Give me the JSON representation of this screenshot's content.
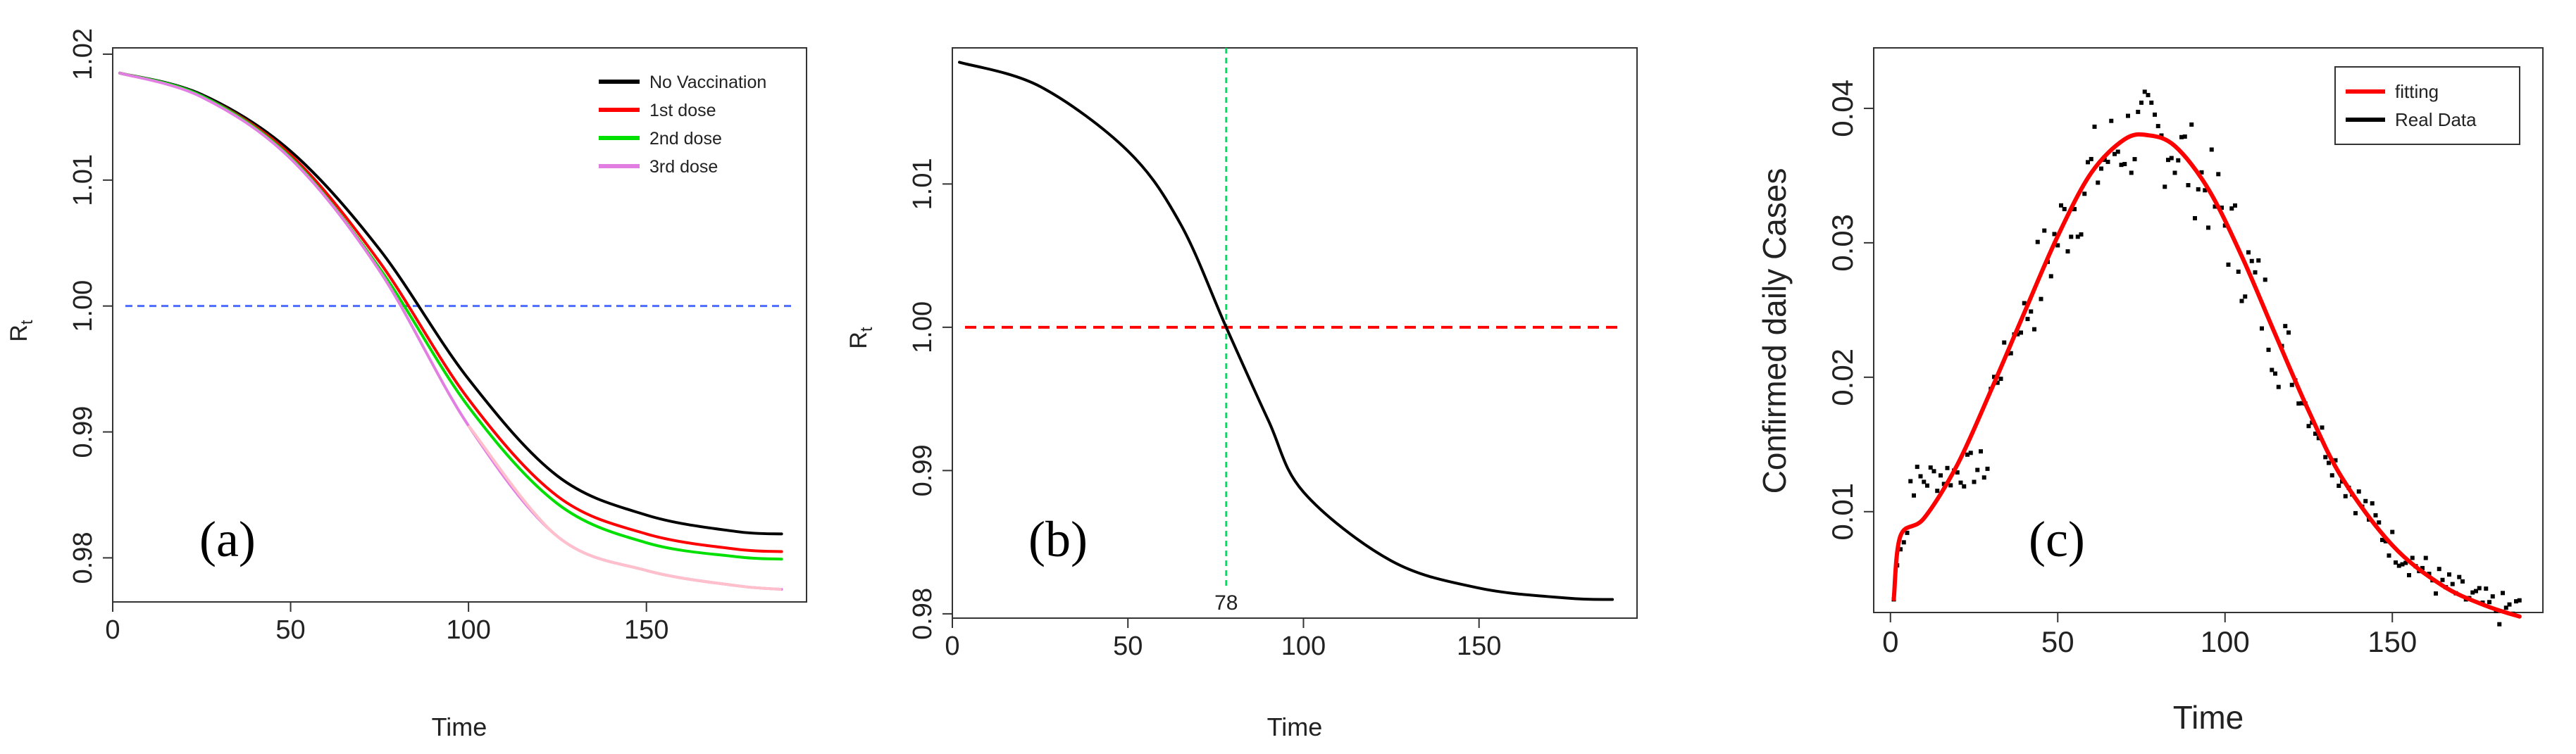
{
  "chart_data": [
    {
      "type": "line",
      "panel_label": "(a)",
      "xlabel": "Time",
      "ylabel": "R",
      "ylabel_sub": "t",
      "xlim": [
        0,
        195
      ],
      "ylim": [
        0.9765,
        1.0205
      ],
      "xticks": [
        0,
        50,
        100,
        150
      ],
      "yticks": [
        0.98,
        0.99,
        1.0,
        1.01,
        1.02
      ],
      "ytick_labels": [
        "0.98",
        "0.99",
        "1.00",
        "1.01",
        "1.02"
      ],
      "legend_position": "top-right",
      "reference_line": {
        "y": 1.0,
        "color": "#4b6cff",
        "style": "dashed"
      },
      "series": [
        {
          "name": "No Vaccination",
          "color": "#000000",
          "x": [
            2,
            25,
            50,
            75,
            100,
            125,
            150,
            175,
            188
          ],
          "y": [
            1.0185,
            1.0168,
            1.0123,
            1.0045,
            0.9942,
            0.9865,
            0.9834,
            0.9821,
            0.9819
          ]
        },
        {
          "name": "1st dose",
          "color": "#ff0000",
          "x": [
            2,
            25,
            50,
            75,
            100,
            125,
            150,
            175,
            188
          ],
          "y": [
            1.0185,
            1.0167,
            1.012,
            1.0035,
            0.9926,
            0.9849,
            0.9819,
            0.9807,
            0.9805
          ]
        },
        {
          "name": "2nd dose",
          "color": "#00e000",
          "x": [
            2,
            25,
            50,
            75,
            100,
            125,
            150,
            175,
            188
          ],
          "y": [
            1.0185,
            1.0167,
            1.0118,
            1.003,
            0.992,
            0.9843,
            0.9812,
            0.9801,
            0.9799
          ]
        },
        {
          "name": "3rd dose",
          "color": "#e27ee2",
          "x": [
            2,
            25,
            50,
            75,
            100,
            125,
            150,
            175,
            188
          ],
          "y": [
            1.0185,
            1.0166,
            1.0117,
            1.0028,
            0.9905,
            0.9817,
            0.979,
            0.9778,
            0.9775
          ],
          "tail_color": "#ffc0cb"
        }
      ]
    },
    {
      "type": "line",
      "panel_label": "(b)",
      "xlabel": "Time",
      "ylabel": "R",
      "ylabel_sub": "t",
      "xlim": [
        0,
        195
      ],
      "ylim": [
        0.9797,
        1.0195
      ],
      "xticks": [
        0,
        50,
        100,
        150
      ],
      "yticks": [
        0.98,
        0.99,
        1.0,
        1.01
      ],
      "ytick_labels": [
        "0.98",
        "0.99",
        "1.00",
        "1.01"
      ],
      "reference_line": {
        "y": 1.0,
        "color": "#ff0000",
        "style": "dashed"
      },
      "vertical_line": {
        "x": 78,
        "color": "#00e060",
        "style": "dashed",
        "label": "78"
      },
      "series": [
        {
          "color": "#000000",
          "x": [
            2,
            25,
            50,
            65,
            78,
            90,
            100,
            125,
            150,
            175,
            188
          ],
          "y": [
            1.0185,
            1.0168,
            1.0123,
            1.0072,
            1.0,
            0.9935,
            0.9885,
            0.9837,
            0.9818,
            0.9811,
            0.981
          ]
        }
      ]
    },
    {
      "type": "line",
      "panel_label": "(c)",
      "xlabel": "Time",
      "ylabel": "Confirmed daily Cases",
      "xlim": [
        -5,
        195
      ],
      "ylim": [
        0.0025,
        0.0445
      ],
      "xticks": [
        0,
        50,
        100,
        150
      ],
      "yticks": [
        0.01,
        0.02,
        0.03,
        0.04
      ],
      "ytick_labels": [
        "0.01",
        "0.02",
        "0.03",
        "0.04"
      ],
      "legend_position": "top-right",
      "series": [
        {
          "name": "fitting",
          "color": "#ff0000",
          "x": [
            1,
            3,
            10,
            20,
            30,
            40,
            50,
            60,
            70,
            77,
            85,
            95,
            105,
            115,
            125,
            135,
            150,
            165,
            178,
            188
          ],
          "y": [
            0.0035,
            0.0082,
            0.0095,
            0.0135,
            0.019,
            0.0248,
            0.0305,
            0.0352,
            0.0377,
            0.038,
            0.0372,
            0.034,
            0.029,
            0.0232,
            0.0175,
            0.0125,
            0.0075,
            0.0045,
            0.003,
            0.0022
          ]
        },
        {
          "name": "Real Data",
          "color": "#000000",
          "type": "scatter"
        }
      ]
    }
  ]
}
